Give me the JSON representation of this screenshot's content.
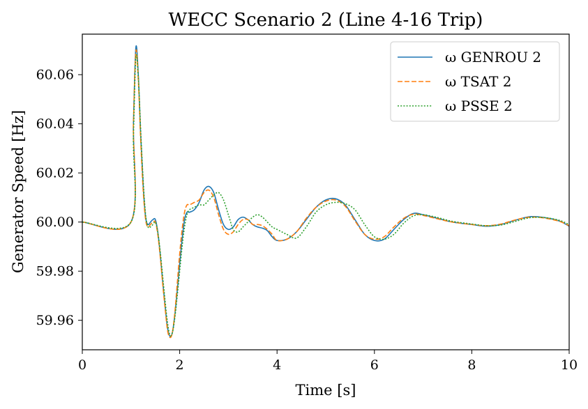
{
  "chart_data": {
    "type": "line",
    "title": "WECC Scenario 2 (Line 4-16 Trip)",
    "xlabel": "Time [s]",
    "ylabel": "Generator Speed [Hz]",
    "xlim": [
      0,
      10
    ],
    "ylim": [
      59.948,
      60.0765
    ],
    "xticks": [
      0,
      2,
      4,
      6,
      8,
      10
    ],
    "yticks": [
      59.96,
      59.98,
      60.0,
      60.02,
      60.04,
      60.06
    ],
    "xtick_labels": [
      "0",
      "2",
      "4",
      "6",
      "8",
      "10"
    ],
    "ytick_labels": [
      "59.96",
      "59.98",
      "60.00",
      "60.02",
      "60.04",
      "60.06"
    ],
    "grid": false,
    "legend_position": "top-right",
    "series": [
      {
        "name": "ω GENROU 2",
        "color": "#1f77b4",
        "style": "solid",
        "x": [
          0,
          1.0,
          1.05,
          1.1,
          1.15,
          1.2,
          1.25,
          1.3,
          1.35,
          1.4,
          1.45,
          1.5,
          1.55,
          1.6,
          1.65,
          1.7,
          1.75,
          1.8,
          1.85,
          1.9,
          1.95,
          2.0,
          2.05,
          2.1,
          2.15,
          2.2,
          2.3,
          2.4,
          2.5,
          2.6,
          2.7,
          2.8,
          2.9,
          3.0,
          3.1,
          3.2,
          3.3,
          3.4,
          3.5,
          3.6,
          3.7,
          3.8,
          3.9,
          4.0,
          4.2,
          4.4,
          4.6,
          4.8,
          5.0,
          5.2,
          5.4,
          5.6,
          5.8,
          6.0,
          6.2,
          6.4,
          6.6,
          6.8,
          7.0,
          7.3,
          7.6,
          8.0,
          8.3,
          8.6,
          8.9,
          9.2,
          9.5,
          9.8,
          10.0
        ],
        "y": [
          60.0,
          60.0,
          60.04,
          60.071,
          60.06,
          60.035,
          60.015,
          60.002,
          59.999,
          60.0,
          60.001,
          60.001,
          59.996,
          59.987,
          59.976,
          59.966,
          59.957,
          59.9535,
          59.955,
          59.962,
          59.972,
          59.983,
          59.993,
          60.001,
          60.004,
          60.004,
          60.005,
          60.008,
          60.013,
          60.0145,
          60.012,
          60.005,
          59.999,
          59.997,
          59.998,
          60.001,
          60.002,
          60.001,
          59.999,
          59.998,
          59.9975,
          59.9965,
          59.994,
          59.9925,
          59.993,
          59.996,
          60.001,
          60.006,
          60.009,
          60.0095,
          60.007,
          60.001,
          59.995,
          59.9925,
          59.993,
          59.997,
          60.001,
          60.0035,
          60.003,
          60.0015,
          60.0,
          59.999,
          59.9983,
          59.999,
          60.0008,
          60.0022,
          60.0018,
          60.0004,
          59.9983
        ]
      },
      {
        "name": "ω TSAT 2",
        "color": "#ff7f0e",
        "style": "dashed",
        "x": [
          0,
          1.0,
          1.05,
          1.1,
          1.15,
          1.2,
          1.25,
          1.3,
          1.35,
          1.4,
          1.45,
          1.5,
          1.55,
          1.6,
          1.65,
          1.7,
          1.75,
          1.8,
          1.85,
          1.9,
          1.95,
          2.0,
          2.05,
          2.1,
          2.15,
          2.2,
          2.3,
          2.4,
          2.5,
          2.6,
          2.7,
          2.8,
          2.9,
          3.0,
          3.1,
          3.2,
          3.3,
          3.4,
          3.5,
          3.6,
          3.7,
          3.8,
          3.9,
          4.0,
          4.2,
          4.4,
          4.6,
          4.8,
          5.0,
          5.2,
          5.4,
          5.6,
          5.8,
          6.0,
          6.2,
          6.4,
          6.6,
          6.8,
          7.0,
          7.3,
          7.6,
          8.0,
          8.3,
          8.6,
          8.9,
          9.2,
          9.5,
          9.8,
          10.0
        ],
        "y": [
          60.0,
          60.0,
          60.04,
          60.0695,
          60.058,
          60.033,
          60.013,
          60.001,
          59.998,
          59.999,
          60.0,
          60.0,
          59.995,
          59.986,
          59.975,
          59.965,
          59.956,
          59.953,
          59.955,
          59.963,
          59.975,
          59.987,
          59.997,
          60.004,
          60.007,
          60.007,
          60.008,
          60.009,
          60.012,
          60.013,
          60.01,
          60.003,
          59.997,
          59.995,
          59.996,
          59.999,
          60.001,
          60.001,
          59.999,
          59.999,
          59.9985,
          59.997,
          59.995,
          59.9925,
          59.993,
          59.996,
          60.0015,
          60.006,
          60.0085,
          60.009,
          60.0065,
          60.0005,
          59.995,
          59.993,
          59.994,
          59.998,
          60.0015,
          60.0032,
          60.0027,
          60.0013,
          60.0,
          59.999,
          59.9985,
          59.9992,
          60.0009,
          60.002,
          60.0016,
          60.0003,
          59.9985
        ]
      },
      {
        "name": "ω PSSE 2",
        "color": "#2ca02c",
        "style": "dotted",
        "x": [
          0,
          1.0,
          1.05,
          1.1,
          1.15,
          1.2,
          1.25,
          1.3,
          1.35,
          1.4,
          1.45,
          1.5,
          1.55,
          1.6,
          1.65,
          1.7,
          1.75,
          1.8,
          1.85,
          1.9,
          1.95,
          2.0,
          2.05,
          2.1,
          2.15,
          2.2,
          2.3,
          2.4,
          2.5,
          2.6,
          2.7,
          2.8,
          2.9,
          3.0,
          3.1,
          3.2,
          3.3,
          3.4,
          3.5,
          3.6,
          3.7,
          3.8,
          3.9,
          4.0,
          4.2,
          4.4,
          4.6,
          4.8,
          5.0,
          5.2,
          5.4,
          5.6,
          5.8,
          6.0,
          6.2,
          6.4,
          6.6,
          6.8,
          7.0,
          7.3,
          7.6,
          8.0,
          8.3,
          8.6,
          8.9,
          9.2,
          9.5,
          9.8,
          10.0
        ],
        "y": [
          60.0,
          60.0,
          60.035,
          60.067,
          60.059,
          60.037,
          60.017,
          60.003,
          59.998,
          59.998,
          59.999,
          60.0,
          59.996,
          59.988,
          59.978,
          59.968,
          59.959,
          59.954,
          59.955,
          59.961,
          59.97,
          59.98,
          59.99,
          59.998,
          60.003,
          60.005,
          60.006,
          60.007,
          60.007,
          60.009,
          60.011,
          60.012,
          60.009,
          60.003,
          59.997,
          59.996,
          59.998,
          60.0,
          60.002,
          60.003,
          60.002,
          60.0,
          59.998,
          59.997,
          59.995,
          59.9935,
          59.998,
          60.004,
          60.007,
          60.008,
          60.0075,
          60.005,
          59.999,
          59.994,
          59.993,
          59.995,
          59.9995,
          60.0025,
          60.003,
          60.0018,
          60.0003,
          59.9992,
          59.9985,
          59.9988,
          60.0003,
          60.0018,
          60.0018,
          60.0007,
          59.999
        ]
      }
    ]
  }
}
